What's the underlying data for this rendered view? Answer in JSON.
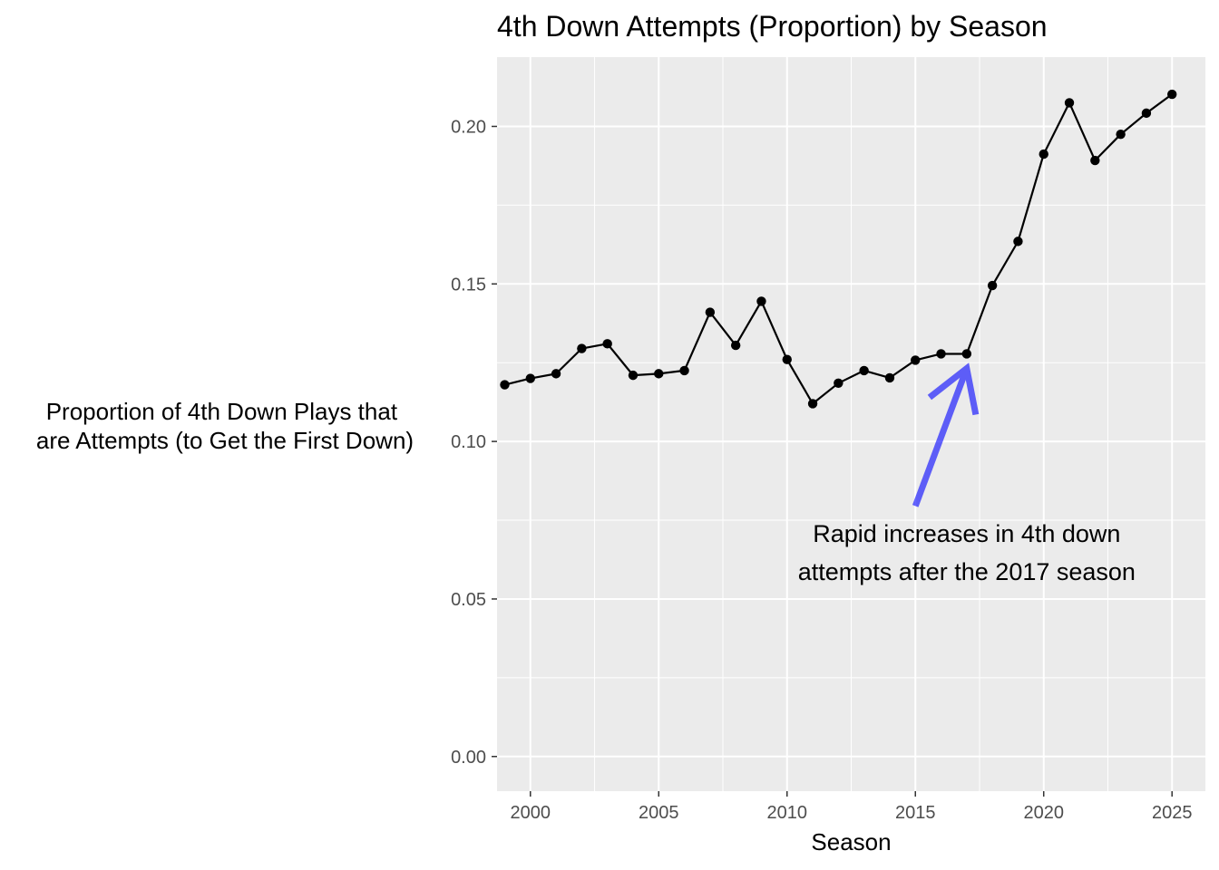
{
  "chart_data": {
    "type": "line",
    "title": "4th Down Attempts (Proportion) by Season",
    "xlabel": "Season",
    "ylabel_lines": [
      "Proportion of 4th Down Plays that",
      "are Attempts (to Get the First Down)"
    ],
    "xlim": [
      1998.7,
      2026.3
    ],
    "ylim": [
      -0.011,
      0.222
    ],
    "x_ticks": [
      2000,
      2005,
      2010,
      2015,
      2020,
      2025
    ],
    "x_tick_labels": [
      "2000",
      "2005",
      "2010",
      "2015",
      "2020",
      "2025"
    ],
    "y_ticks": [
      0,
      0.05,
      0.1,
      0.15,
      0.2
    ],
    "y_tick_labels": [
      "0.00",
      "0.05",
      "0.10",
      "0.15",
      "0.20"
    ],
    "x": [
      1999,
      2000,
      2001,
      2002,
      2003,
      2004,
      2005,
      2006,
      2007,
      2008,
      2009,
      2010,
      2011,
      2012,
      2013,
      2014,
      2015,
      2016,
      2017,
      2018,
      2019,
      2020,
      2021,
      2022,
      2023,
      2024,
      2025
    ],
    "series": [
      {
        "values": [
          0.118,
          0.12,
          0.1215,
          0.1295,
          0.131,
          0.121,
          0.1215,
          0.1225,
          0.141,
          0.1305,
          0.1445,
          0.126,
          0.112,
          0.1185,
          0.1225,
          0.1202,
          0.1258,
          0.1278,
          0.1278,
          0.1495,
          0.1635,
          0.1912,
          0.2075,
          0.1892,
          0.1975,
          0.2042,
          0.2102
        ],
        "color": "#000000"
      }
    ],
    "grid": true,
    "panel_background": "#ebebeb",
    "grid_color": "#ffffff",
    "annotation": {
      "lines": [
        "Rapid increases in 4th down",
        "attempts after the 2017 season"
      ],
      "text_x": 2017,
      "text_y_top": 0.075,
      "arrow_from": [
        2015,
        0.0795
      ],
      "arrow_to": [
        2017,
        0.1232
      ],
      "arrow_color": "#0000ff",
      "arrow_opacity": 0.6
    }
  }
}
